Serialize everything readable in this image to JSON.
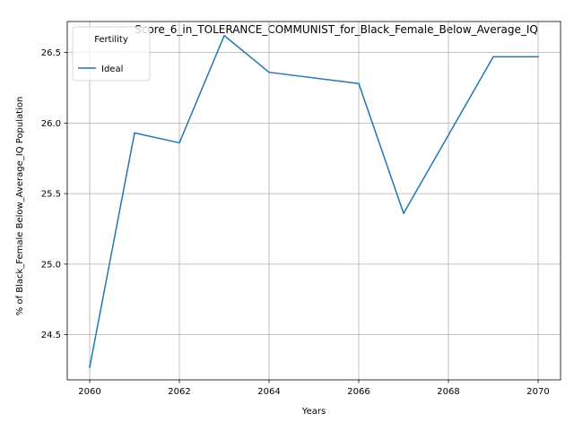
{
  "chart_data": {
    "type": "line",
    "title": "Score_6_in_TOLERANCE_COMMUNIST_for_Black_Female_Below_Average_IQ",
    "xlabel": "Years",
    "ylabel": "% of Black_Female Below_Average_IQ Population",
    "x": [
      2060,
      2061,
      2062,
      2063,
      2064,
      2066,
      2067,
      2069,
      2070
    ],
    "series": [
      {
        "name": "Ideal",
        "color": "#1f77b4",
        "values": [
          24.27,
          25.93,
          25.86,
          26.62,
          26.36,
          26.28,
          25.36,
          26.47,
          26.47
        ]
      }
    ],
    "xlim": [
      2059.5,
      2070.5
    ],
    "ylim": [
      24.18,
      26.72
    ],
    "xticks": [
      2060,
      2062,
      2064,
      2066,
      2068,
      2070
    ],
    "yticks": [
      24.5,
      25.0,
      25.5,
      26.0,
      26.5
    ],
    "ytick_labels": [
      "24.5",
      "25.0",
      "25.5",
      "26.0",
      "26.5"
    ],
    "grid": true,
    "legend": {
      "title": "Fertility",
      "placement": "top-left"
    }
  }
}
